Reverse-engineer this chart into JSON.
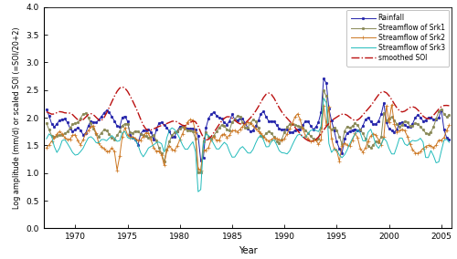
{
  "title": "",
  "xlabel": "Year",
  "ylabel": "Log amplitude (mm/d) or scaled SOI (=SOI/20+2)",
  "xlim": [
    1967.0,
    2006.0
  ],
  "ylim": [
    0,
    4
  ],
  "yticks": [
    0,
    0.5,
    1.0,
    1.5,
    2.0,
    2.5,
    3.0,
    3.5,
    4.0
  ],
  "xticks": [
    1970,
    1975,
    1980,
    1985,
    1990,
    1995,
    2000,
    2005
  ],
  "legend_labels": [
    "Rainfall",
    "Streamflow of Srk1",
    "Streamflow of Srk2",
    "Streamflow of Srk3",
    "smoothed SOI"
  ],
  "colors": {
    "rainfall": "#2222aa",
    "srk1": "#888855",
    "srk2": "#cc7722",
    "srk3": "#22bbbb",
    "soi": "#bb1111"
  },
  "figsize": [
    5.0,
    2.84
  ],
  "dpi": 100
}
